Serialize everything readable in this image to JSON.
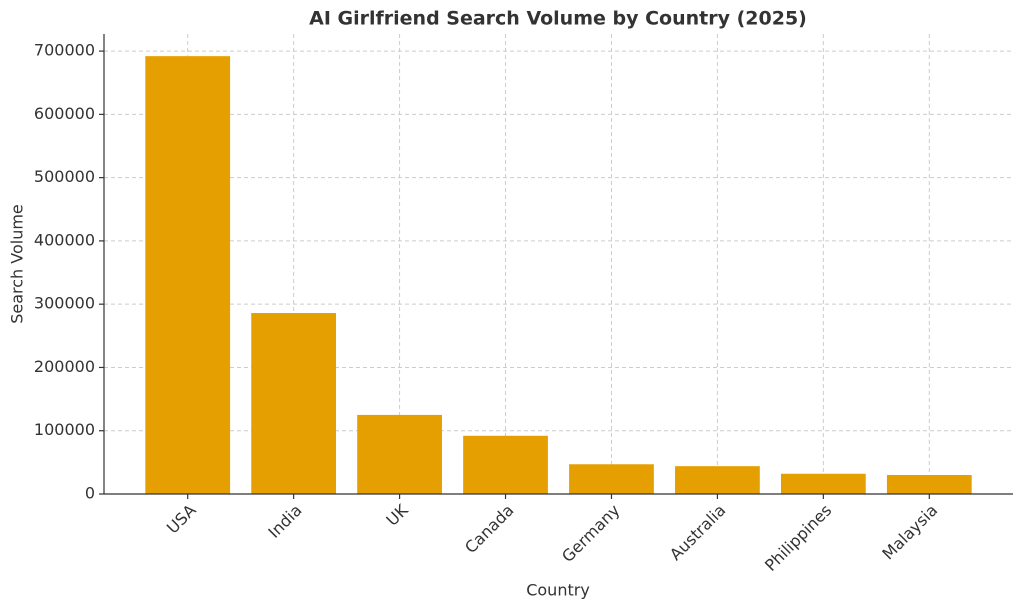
{
  "chart_data": {
    "type": "bar",
    "title": "AI Girlfriend Search Volume by Country (2025)",
    "x_label": "Country",
    "y_label": "Search Volume",
    "categories": [
      "USA",
      "India",
      "UK",
      "Canada",
      "Germany",
      "Australia",
      "Philippines",
      "Malaysia"
    ],
    "values": [
      692000,
      286000,
      125000,
      92000,
      47000,
      44000,
      32000,
      30000
    ],
    "color": "#e69f00",
    "ylim": [
      0,
      727000
    ],
    "yticks": [
      0,
      100000,
      200000,
      300000,
      400000,
      500000,
      600000,
      700000
    ],
    "grid": true
  }
}
